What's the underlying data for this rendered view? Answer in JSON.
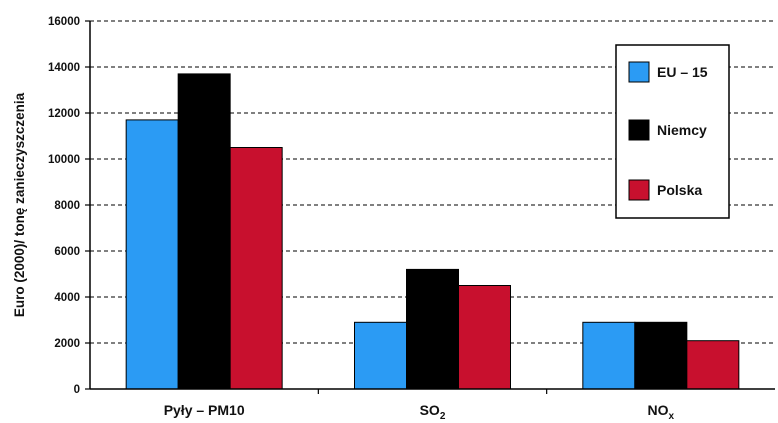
{
  "chart_data": {
    "type": "bar",
    "ylabel": "Euro (2000)/ tonę zanieczyszczenia",
    "ylim": [
      0,
      16000
    ],
    "yticks": [
      0,
      2000,
      4000,
      6000,
      8000,
      10000,
      12000,
      14000,
      16000
    ],
    "grid": true,
    "legend_position": "top-right",
    "categories": [
      {
        "label": "Pyły – PM10",
        "sub": ""
      },
      {
        "label": "SO",
        "sub": "2"
      },
      {
        "label": "NO",
        "sub": "x"
      }
    ],
    "series": [
      {
        "name": "EU – 15",
        "color": "#2b9bf4",
        "values": [
          11700,
          2900,
          2900
        ]
      },
      {
        "name": "Niemcy",
        "color": "#000000",
        "values": [
          13700,
          5200,
          2900
        ]
      },
      {
        "name": "Polska",
        "color": "#c8102e",
        "values": [
          10500,
          4500,
          2100
        ]
      }
    ]
  }
}
